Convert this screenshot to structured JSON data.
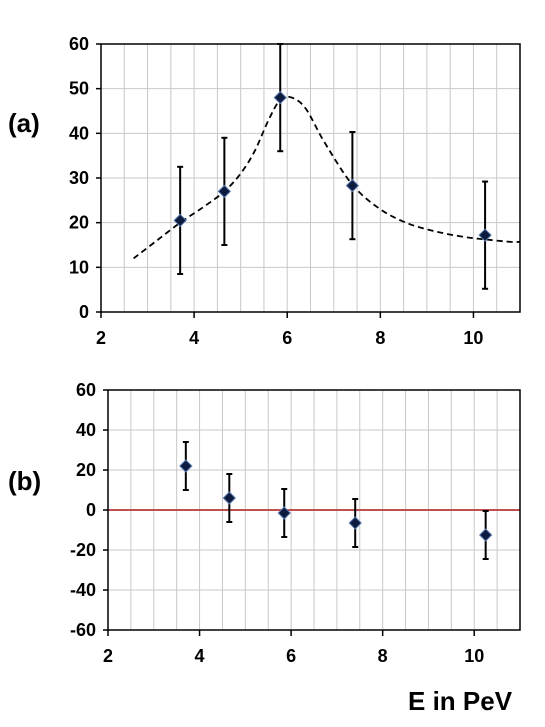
{
  "chart_data": [
    {
      "panel_label": "(a)",
      "type": "scatter",
      "xlim": [
        2,
        11
      ],
      "ylim": [
        0,
        60
      ],
      "x_ticks": [
        "2",
        "4",
        "6",
        "8",
        "10"
      ],
      "y_ticks": [
        "0",
        "10",
        "20",
        "30",
        "40",
        "50",
        "60"
      ],
      "grid": true,
      "points": [
        {
          "x": 3.7,
          "y": 20.5,
          "err": 12
        },
        {
          "x": 4.65,
          "y": 27,
          "err": 12
        },
        {
          "x": 5.85,
          "y": 48,
          "err": 12
        },
        {
          "x": 7.4,
          "y": 28.3,
          "err": 12
        },
        {
          "x": 10.25,
          "y": 17.2,
          "err": 12
        }
      ],
      "fit_curve": {
        "style": "dashed",
        "x": [
          2.7,
          3.2,
          3.7,
          4.2,
          4.65,
          5.0,
          5.3,
          5.6,
          5.85,
          6.1,
          6.4,
          6.8,
          7.4,
          8.0,
          8.6,
          9.2,
          9.8,
          10.3,
          10.8,
          11.0
        ],
        "y": [
          12,
          16,
          20,
          23.5,
          27,
          31,
          36,
          43,
          47.5,
          48,
          45.5,
          38,
          28.5,
          23,
          19.8,
          18,
          16.8,
          16.2,
          15.7,
          15.7
        ]
      }
    },
    {
      "panel_label": "(b)",
      "type": "scatter",
      "xlim": [
        2,
        11
      ],
      "ylim": [
        -60,
        60
      ],
      "x_ticks": [
        "2",
        "4",
        "6",
        "8",
        "10"
      ],
      "y_ticks": [
        "-60",
        "-40",
        "-20",
        "0",
        "20",
        "40",
        "60"
      ],
      "grid": true,
      "reference_line": {
        "y": 0,
        "color": "#c0504d"
      },
      "points": [
        {
          "x": 3.7,
          "y": 22,
          "err": 12
        },
        {
          "x": 4.65,
          "y": 6,
          "err": 12
        },
        {
          "x": 5.85,
          "y": -1.5,
          "err": 12
        },
        {
          "x": 7.4,
          "y": -6.5,
          "err": 12
        },
        {
          "x": 10.25,
          "y": -12.5,
          "err": 12
        }
      ]
    }
  ],
  "xlabel": "E in PeV",
  "colors": {
    "marker": "#0d1b3e",
    "marker_edge": "#5b7bb0",
    "grid": "#c8c8c8",
    "axis": "#000000"
  }
}
